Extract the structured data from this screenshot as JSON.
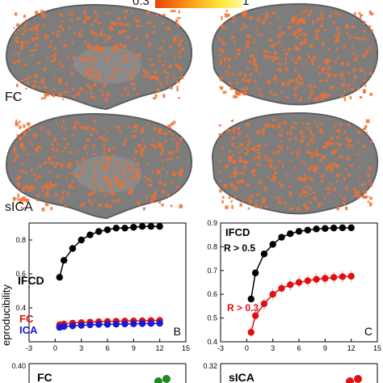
{
  "colorbar": {
    "min_label": "0.3",
    "max_label": "1",
    "gradient": [
      "#e8440a",
      "#f57a10",
      "#ffb020",
      "#ffe83a",
      "#fff8a0"
    ]
  },
  "brain_colors": {
    "surface": "#7d7d7d",
    "shadow": "#5f5f5f",
    "activation": "#f07030"
  },
  "brain_labels": {
    "row1": "FC",
    "row2": "sICA"
  },
  "chart_data": [
    {
      "type": "line",
      "panel_label": "B",
      "xlim": [
        -3,
        15
      ],
      "ylim": [
        0.2,
        0.9
      ],
      "xticks": [
        "-3",
        "0",
        "3",
        "6",
        "9",
        "12",
        "15"
      ],
      "yticks": [
        "0.4",
        "0.6",
        "0.8"
      ],
      "ylabel": "eproducibility",
      "series": [
        {
          "name": "IFCD",
          "color": "#000000",
          "x": [
            0.5,
            1,
            2,
            3,
            4,
            5,
            6,
            7,
            8,
            9,
            10,
            11,
            12
          ],
          "y": [
            0.58,
            0.68,
            0.75,
            0.8,
            0.83,
            0.85,
            0.86,
            0.87,
            0.87,
            0.875,
            0.88,
            0.88,
            0.88
          ]
        },
        {
          "name": "FC",
          "color": "#e01010",
          "x": [
            0.5,
            1,
            2,
            3,
            4,
            5,
            6,
            7,
            8,
            9,
            10,
            11,
            12
          ],
          "y": [
            0.3,
            0.305,
            0.31,
            0.313,
            0.316,
            0.318,
            0.32,
            0.321,
            0.322,
            0.323,
            0.324,
            0.325,
            0.326
          ]
        },
        {
          "name": "ICA",
          "color": "#1a1ad0",
          "x": [
            0.5,
            1,
            2,
            3,
            4,
            5,
            6,
            7,
            8,
            9,
            10,
            11,
            12
          ],
          "y": [
            0.285,
            0.29,
            0.294,
            0.297,
            0.3,
            0.302,
            0.303,
            0.304,
            0.305,
            0.306,
            0.307,
            0.308,
            0.309
          ]
        }
      ]
    },
    {
      "type": "line",
      "panel_label": "C",
      "xlim": [
        -3,
        15
      ],
      "ylim": [
        0.4,
        0.9
      ],
      "xticks": [
        "-3",
        "0",
        "3",
        "6",
        "9",
        "12",
        "15"
      ],
      "yticks": [
        "0.4",
        "0.5",
        "0.6",
        "0.7",
        "0.8",
        "0.9"
      ],
      "series": [
        {
          "name": "IFCD",
          "annotation": "R > 0.5",
          "color": "#000000",
          "x": [
            0.5,
            1,
            2,
            3,
            4,
            5,
            6,
            7,
            8,
            9,
            10,
            11,
            12
          ],
          "y": [
            0.58,
            0.69,
            0.77,
            0.81,
            0.84,
            0.855,
            0.865,
            0.87,
            0.875,
            0.877,
            0.879,
            0.88,
            0.88
          ]
        },
        {
          "name": "R > 0.3",
          "color": "#e01010",
          "x": [
            0.5,
            1,
            2,
            3,
            4,
            5,
            6,
            7,
            8,
            9,
            10,
            11,
            12
          ],
          "y": [
            0.44,
            0.51,
            0.56,
            0.6,
            0.625,
            0.64,
            0.65,
            0.657,
            0.663,
            0.667,
            0.671,
            0.674,
            0.676
          ],
          "err": [
            0.02,
            0.02,
            0.025,
            0.025,
            0.025,
            0.025,
            0.025,
            0.025,
            0.025,
            0.025,
            0.025,
            0.025,
            0.025
          ]
        }
      ]
    },
    {
      "type": "line",
      "panel_label": "FC",
      "ytick_top": "0.40",
      "series": [
        {
          "name": "",
          "color": "#1a8a1a"
        }
      ]
    },
    {
      "type": "line",
      "panel_label": "sICA",
      "ytick_top": "0.32",
      "series": [
        {
          "name": "",
          "color": "#e01010"
        }
      ]
    }
  ]
}
